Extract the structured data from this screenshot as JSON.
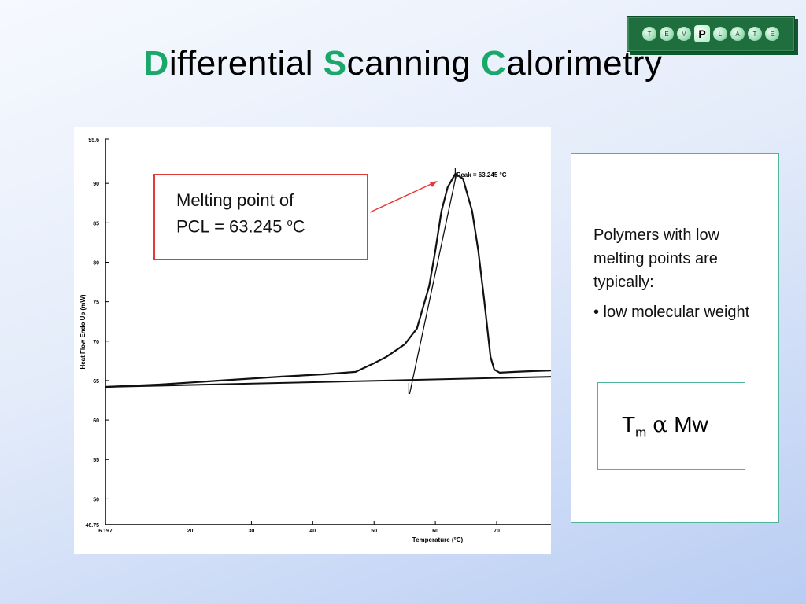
{
  "logo": {
    "letters": [
      "T",
      "E",
      "M",
      "P",
      "L",
      "A",
      "T",
      "E"
    ]
  },
  "title": {
    "part1_cap": "D",
    "part1_rest": "ifferential ",
    "part2_cap": "S",
    "part2_rest": "canning ",
    "part3_cap": "C",
    "part3_rest": "alorimetry"
  },
  "colors": {
    "accent": "#1aa86a",
    "callout_border": "#e03a3a",
    "box_border": "#4fb59a"
  },
  "callout": {
    "line1": "Melting point of",
    "line2_prefix": "PCL = 63.245 ",
    "line2_sup": "o",
    "line2_suffix": "C"
  },
  "info": {
    "paragraph": "Polymers with low melting points are typically:",
    "bullet": "• low molecular weight"
  },
  "formula": {
    "t": "T",
    "sub": "m",
    "alpha": "α",
    "mw": "Mw"
  },
  "chart_data": {
    "type": "line",
    "ylabel": "Heat Flow Endo Up (mW)",
    "xlabel": "Temperature (°C)",
    "xlim": [
      6.197,
      80
    ],
    "ylim": [
      46.75,
      95.6
    ],
    "x_ticks": [
      6.197,
      20,
      30,
      40,
      50,
      60,
      70
    ],
    "y_ticks": [
      46.75,
      50,
      55,
      60,
      65,
      70,
      75,
      80,
      85,
      90,
      95.6
    ],
    "x_tick_labels": [
      "6.197",
      "20",
      "30",
      "40",
      "50",
      "60",
      "70"
    ],
    "y_tick_labels": [
      "46.75",
      "50",
      "55",
      "60",
      "65",
      "70",
      "75",
      "80",
      "85",
      "90",
      "95.6"
    ],
    "annotation": "Peak = 63.245 °C",
    "peak": {
      "x": 63.245,
      "y": 91.2
    },
    "series": [
      {
        "x": [
          6.197,
          15,
          25,
          35,
          42,
          47,
          50,
          52,
          55,
          57,
          59,
          60,
          61,
          62,
          63.245,
          64.5,
          66,
          67,
          68,
          69,
          69.6,
          70.5,
          73,
          76,
          80
        ],
        "y": [
          64.2,
          64.5,
          65.0,
          65.5,
          65.8,
          66.1,
          67.2,
          68.0,
          69.6,
          71.6,
          77.0,
          81.5,
          86.5,
          89.5,
          91.2,
          90.6,
          86.5,
          81.5,
          75.0,
          68.0,
          66.4,
          66.0,
          66.1,
          66.2,
          66.3
        ]
      },
      {
        "x": [
          6.197,
          80
        ],
        "y": [
          64.2,
          65.5
        ]
      }
    ]
  }
}
